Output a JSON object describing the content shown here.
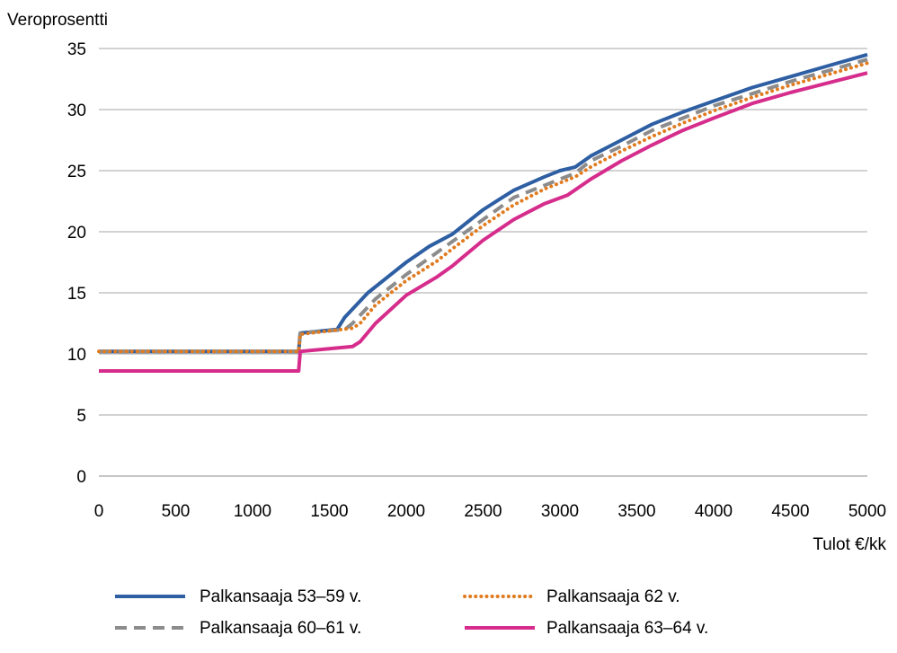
{
  "chart_data": {
    "type": "line",
    "title": "",
    "ylabel": "Veroprosentti",
    "xlabel": "Tulot €/kk",
    "xlim": [
      0,
      5000
    ],
    "ylim": [
      0,
      35
    ],
    "xticks": [
      0,
      500,
      1000,
      1500,
      2000,
      2500,
      3000,
      3500,
      4000,
      4500,
      5000
    ],
    "yticks": [
      0,
      5,
      10,
      15,
      20,
      25,
      30,
      35
    ],
    "grid": "horizontal",
    "legend": "bottom",
    "series": [
      {
        "name": "Palkansaaja 53–59 v.",
        "color": "#2e5fa3",
        "dash": "solid",
        "points": [
          [
            0,
            10.2
          ],
          [
            1300,
            10.2
          ],
          [
            1310,
            11.7
          ],
          [
            1550,
            12.0
          ],
          [
            1600,
            13.0
          ],
          [
            1750,
            15.0
          ],
          [
            1900,
            16.5
          ],
          [
            2000,
            17.5
          ],
          [
            2150,
            18.8
          ],
          [
            2300,
            19.8
          ],
          [
            2500,
            21.8
          ],
          [
            2600,
            22.6
          ],
          [
            2700,
            23.4
          ],
          [
            2900,
            24.5
          ],
          [
            3000,
            25.0
          ],
          [
            3100,
            25.3
          ],
          [
            3200,
            26.2
          ],
          [
            3400,
            27.5
          ],
          [
            3600,
            28.8
          ],
          [
            3800,
            29.8
          ],
          [
            4000,
            30.7
          ],
          [
            4250,
            31.8
          ],
          [
            4500,
            32.7
          ],
          [
            4750,
            33.6
          ],
          [
            5000,
            34.5
          ]
        ]
      },
      {
        "name": "Palkansaaja 60–61 v.",
        "color": "#8c8c8c",
        "dash": "dashed",
        "points": [
          [
            0,
            10.2
          ],
          [
            1300,
            10.2
          ],
          [
            1310,
            11.7
          ],
          [
            1600,
            12.0
          ],
          [
            1650,
            12.5
          ],
          [
            1800,
            14.5
          ],
          [
            2000,
            16.5
          ],
          [
            2200,
            18.3
          ],
          [
            2300,
            19.2
          ],
          [
            2500,
            21.0
          ],
          [
            2700,
            22.8
          ],
          [
            2900,
            23.8
          ],
          [
            3000,
            24.3
          ],
          [
            3100,
            24.8
          ],
          [
            3200,
            25.8
          ],
          [
            3400,
            27.0
          ],
          [
            3600,
            28.3
          ],
          [
            3800,
            29.3
          ],
          [
            4000,
            30.3
          ],
          [
            4250,
            31.3
          ],
          [
            4500,
            32.3
          ],
          [
            4750,
            33.2
          ],
          [
            5000,
            34.1
          ]
        ]
      },
      {
        "name": "Palkansaaja 62 v.",
        "color": "#e07b20",
        "dash": "dotted",
        "points": [
          [
            0,
            10.2
          ],
          [
            1300,
            10.2
          ],
          [
            1310,
            11.6
          ],
          [
            1650,
            12.1
          ],
          [
            1700,
            12.5
          ],
          [
            1800,
            14.0
          ],
          [
            2000,
            16.0
          ],
          [
            2200,
            17.6
          ],
          [
            2300,
            18.6
          ],
          [
            2500,
            20.5
          ],
          [
            2700,
            22.2
          ],
          [
            2900,
            23.5
          ],
          [
            3000,
            24.0
          ],
          [
            3100,
            24.5
          ],
          [
            3200,
            25.3
          ],
          [
            3400,
            26.6
          ],
          [
            3600,
            27.8
          ],
          [
            3800,
            28.9
          ],
          [
            4000,
            29.9
          ],
          [
            4250,
            31.0
          ],
          [
            4500,
            32.0
          ],
          [
            4750,
            32.9
          ],
          [
            5000,
            33.8
          ]
        ]
      },
      {
        "name": "Palkansaaja 63–64 v.",
        "color": "#d62d8c",
        "dash": "solid",
        "points": [
          [
            0,
            8.6
          ],
          [
            1300,
            8.6
          ],
          [
            1310,
            10.2
          ],
          [
            1650,
            10.6
          ],
          [
            1700,
            11.0
          ],
          [
            1800,
            12.5
          ],
          [
            2000,
            14.8
          ],
          [
            2200,
            16.3
          ],
          [
            2300,
            17.2
          ],
          [
            2500,
            19.3
          ],
          [
            2700,
            21.0
          ],
          [
            2900,
            22.3
          ],
          [
            3050,
            23.0
          ],
          [
            3200,
            24.3
          ],
          [
            3400,
            25.8
          ],
          [
            3600,
            27.1
          ],
          [
            3800,
            28.3
          ],
          [
            4000,
            29.3
          ],
          [
            4250,
            30.5
          ],
          [
            4500,
            31.4
          ],
          [
            4750,
            32.2
          ],
          [
            5000,
            33.0
          ]
        ]
      }
    ]
  }
}
